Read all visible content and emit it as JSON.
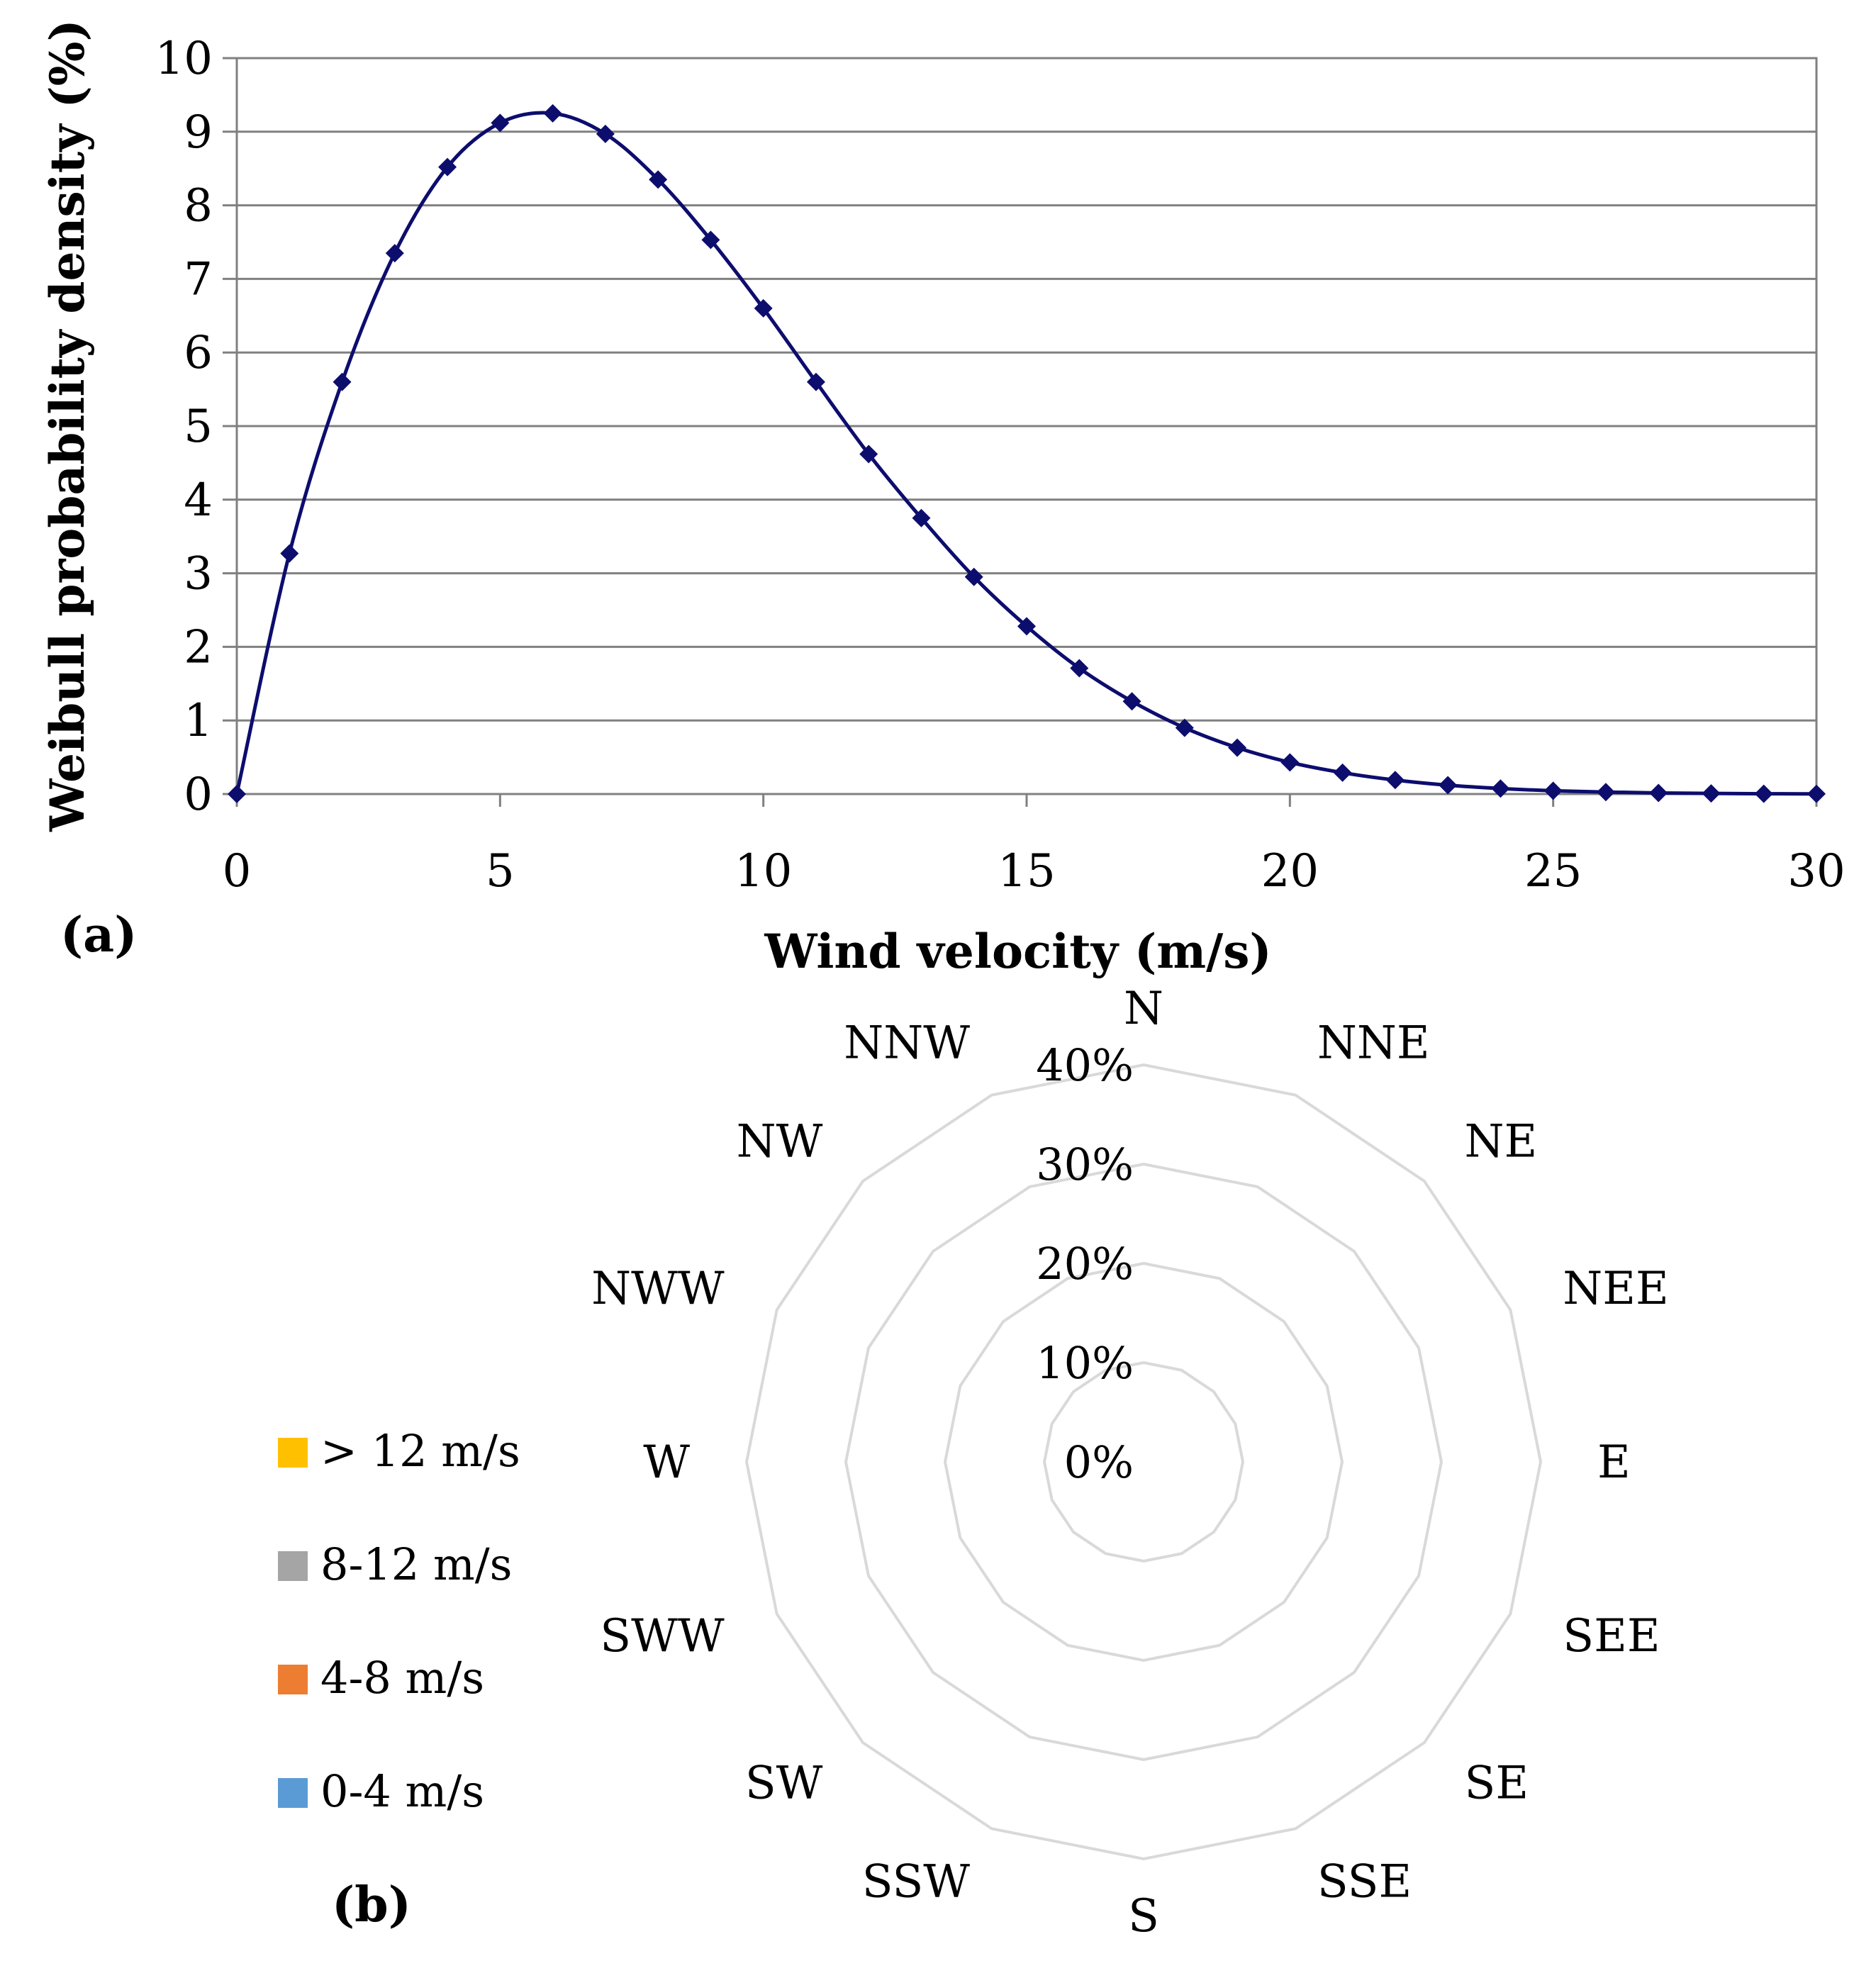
{
  "chart_data": [
    {
      "type": "line",
      "panel_label": "(a)",
      "title": "",
      "xlabel": "Wind velocity (m/s)",
      "ylabel": "Weibull probability density (%)",
      "xlim": [
        0,
        30
      ],
      "ylim": [
        0,
        10
      ],
      "x_ticks": [
        "0",
        "5",
        "10",
        "15",
        "20",
        "25",
        "30"
      ],
      "y_ticks": [
        "0",
        "1",
        "2",
        "3",
        "4",
        "5",
        "6",
        "7",
        "8",
        "9",
        "10"
      ],
      "grid": true,
      "marker": "diamond",
      "color": "#0d0d6e",
      "series": [
        {
          "name": "Weibull probability density",
          "x": [
            0,
            1,
            2,
            3,
            4,
            5,
            6,
            7,
            8,
            9,
            10,
            11,
            12,
            13,
            14,
            15,
            16,
            17,
            18,
            19,
            20,
            21,
            22,
            23,
            24,
            25,
            26,
            27,
            28,
            29,
            30
          ],
          "values": [
            0,
            3.27,
            5.6,
            7.35,
            8.52,
            9.12,
            9.25,
            8.97,
            8.35,
            7.53,
            6.6,
            5.6,
            4.62,
            3.75,
            2.95,
            2.28,
            1.71,
            1.26,
            0.9,
            0.63,
            0.43,
            0.29,
            0.19,
            0.12,
            0.075,
            0.045,
            0.027,
            0.015,
            0.008,
            0.004,
            0.002
          ]
        }
      ]
    },
    {
      "type": "radar",
      "panel_label": "(b)",
      "title": "",
      "directions": [
        "N",
        "NNE",
        "NE",
        "NEE",
        "E",
        "SEE",
        "SE",
        "SSE",
        "S",
        "SSW",
        "SW",
        "SWW",
        "W",
        "NWW",
        "NW",
        "NNW"
      ],
      "ring_labels": [
        "0%",
        "10%",
        "20%",
        "30%",
        "40%"
      ],
      "rlim": [
        0,
        40
      ],
      "legend_position": "left",
      "series": [
        {
          "name": "> 12 m/s",
          "color": "#ffc000",
          "values": [
            0,
            0,
            0,
            0,
            0,
            0,
            0,
            0,
            0,
            0,
            0,
            0,
            0,
            0,
            0,
            0
          ]
        },
        {
          "name": "8-12 m/s",
          "color": "#a5a5a5",
          "values": [
            0,
            0,
            0,
            0,
            0,
            0,
            0,
            0,
            0,
            0,
            0,
            0,
            0,
            0,
            0,
            0
          ]
        },
        {
          "name": "4-8 m/s",
          "color": "#ed7d31",
          "values": [
            0,
            0,
            0,
            0,
            0,
            0,
            0,
            0,
            0,
            0,
            0,
            0,
            0,
            0,
            0,
            0
          ]
        },
        {
          "name": "0-4 m/s",
          "color": "#5b9bd5",
          "values": [
            0,
            0,
            0,
            0,
            0,
            0,
            0,
            0,
            0,
            0,
            0,
            0,
            0,
            0,
            0,
            0
          ]
        }
      ]
    }
  ]
}
